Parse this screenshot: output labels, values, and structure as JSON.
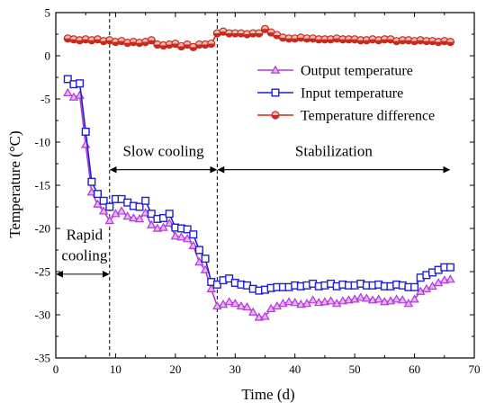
{
  "chart_data": {
    "type": "line",
    "title": "",
    "xlabel": "Time (d)",
    "ylabel": "Temperature (°C)",
    "xlim": [
      0,
      70
    ],
    "ylim": [
      -35,
      5
    ],
    "xticks": [
      "0",
      "10",
      "20",
      "30",
      "40",
      "50",
      "60",
      "70"
    ],
    "yticks": [
      "5",
      "0",
      "-5",
      "-10",
      "-15",
      "-20",
      "-25",
      "-30",
      "-35"
    ],
    "grid": false,
    "legend_placement": "top-right",
    "phase_boundaries": [
      9,
      27
    ],
    "phases": [
      {
        "label": "Rapid",
        "label2": "cooling",
        "from": 0,
        "to": 9
      },
      {
        "label": "Slow cooling",
        "from": 9,
        "to": 27
      },
      {
        "label": "Stabilization",
        "from": 27,
        "to": 66
      }
    ],
    "x": [
      2,
      3,
      4,
      5,
      6,
      7,
      8,
      9,
      10,
      11,
      12,
      13,
      14,
      15,
      16,
      17,
      18,
      19,
      20,
      21,
      22,
      23,
      24,
      25,
      26,
      27,
      28,
      29,
      30,
      31,
      32,
      33,
      34,
      35,
      36,
      37,
      38,
      39,
      40,
      41,
      42,
      43,
      44,
      45,
      46,
      47,
      48,
      49,
      50,
      51,
      52,
      53,
      54,
      55,
      56,
      57,
      58,
      59,
      60,
      61,
      62,
      63,
      64,
      65,
      66
    ],
    "series": [
      {
        "name": "Output temperature",
        "color": "#b23ad9",
        "marker": "triangle",
        "values": [
          -4.3,
          -4.8,
          -4.6,
          -10.3,
          -15.8,
          -17.2,
          -18.0,
          -19.1,
          -18.3,
          -18.0,
          -18.6,
          -18.8,
          -18.9,
          -18.2,
          -19.6,
          -20.0,
          -19.9,
          -19.4,
          -20.9,
          -21.0,
          -21.2,
          -22.0,
          -23.9,
          -24.8,
          -27.0,
          -29.0,
          -28.8,
          -28.5,
          -28.7,
          -29.0,
          -29.1,
          -29.7,
          -30.3,
          -30.2,
          -29.3,
          -29.0,
          -28.7,
          -28.5,
          -28.6,
          -28.8,
          -28.7,
          -28.3,
          -28.6,
          -28.5,
          -28.4,
          -28.7,
          -28.4,
          -28.3,
          -28.2,
          -28.0,
          -28.1,
          -28.3,
          -28.2,
          -28.5,
          -28.4,
          -28.2,
          -28.3,
          -28.7,
          -28.2,
          -27.3,
          -27.0,
          -26.7,
          -26.3,
          -26.0,
          -25.9
        ]
      },
      {
        "name": "Input temperature",
        "color": "#1f1fd6",
        "marker": "square",
        "values": [
          -2.7,
          -3.3,
          -3.2,
          -8.8,
          -14.6,
          -16.0,
          -16.8,
          -17.5,
          -16.6,
          -16.6,
          -17.0,
          -17.4,
          -17.5,
          -16.8,
          -18.3,
          -18.9,
          -18.8,
          -18.3,
          -19.9,
          -20.0,
          -20.1,
          -20.7,
          -22.5,
          -23.5,
          -26.2,
          -26.5,
          -26.0,
          -25.8,
          -26.3,
          -26.5,
          -26.6,
          -27.0,
          -27.2,
          -27.1,
          -26.9,
          -26.8,
          -26.8,
          -26.8,
          -26.6,
          -26.7,
          -26.6,
          -26.4,
          -26.7,
          -26.6,
          -26.4,
          -26.7,
          -26.5,
          -26.6,
          -26.6,
          -26.4,
          -26.6,
          -26.6,
          -26.5,
          -26.7,
          -26.7,
          -26.5,
          -26.6,
          -26.8,
          -26.8,
          -25.7,
          -25.4,
          -25.1,
          -24.8,
          -24.5,
          -24.5
        ]
      },
      {
        "name": "Temperature difference",
        "color": "#c62b1e",
        "marker": "half-circle",
        "values": [
          2.0,
          1.9,
          1.8,
          1.9,
          1.8,
          1.9,
          1.7,
          1.8,
          1.6,
          1.7,
          1.5,
          1.6,
          1.5,
          1.6,
          1.8,
          1.3,
          1.2,
          1.3,
          1.4,
          1.1,
          1.3,
          1.0,
          1.3,
          1.3,
          1.4,
          2.6,
          2.8,
          2.6,
          2.6,
          2.6,
          2.5,
          2.6,
          2.6,
          3.1,
          2.7,
          2.4,
          2.1,
          2.0,
          2.0,
          2.1,
          2.0,
          2.0,
          1.9,
          1.9,
          1.9,
          2.0,
          1.9,
          1.9,
          1.9,
          1.8,
          1.8,
          1.9,
          1.8,
          1.9,
          1.9,
          1.7,
          1.8,
          1.8,
          1.7,
          1.8,
          1.7,
          1.7,
          1.6,
          1.7,
          1.6
        ]
      }
    ]
  }
}
